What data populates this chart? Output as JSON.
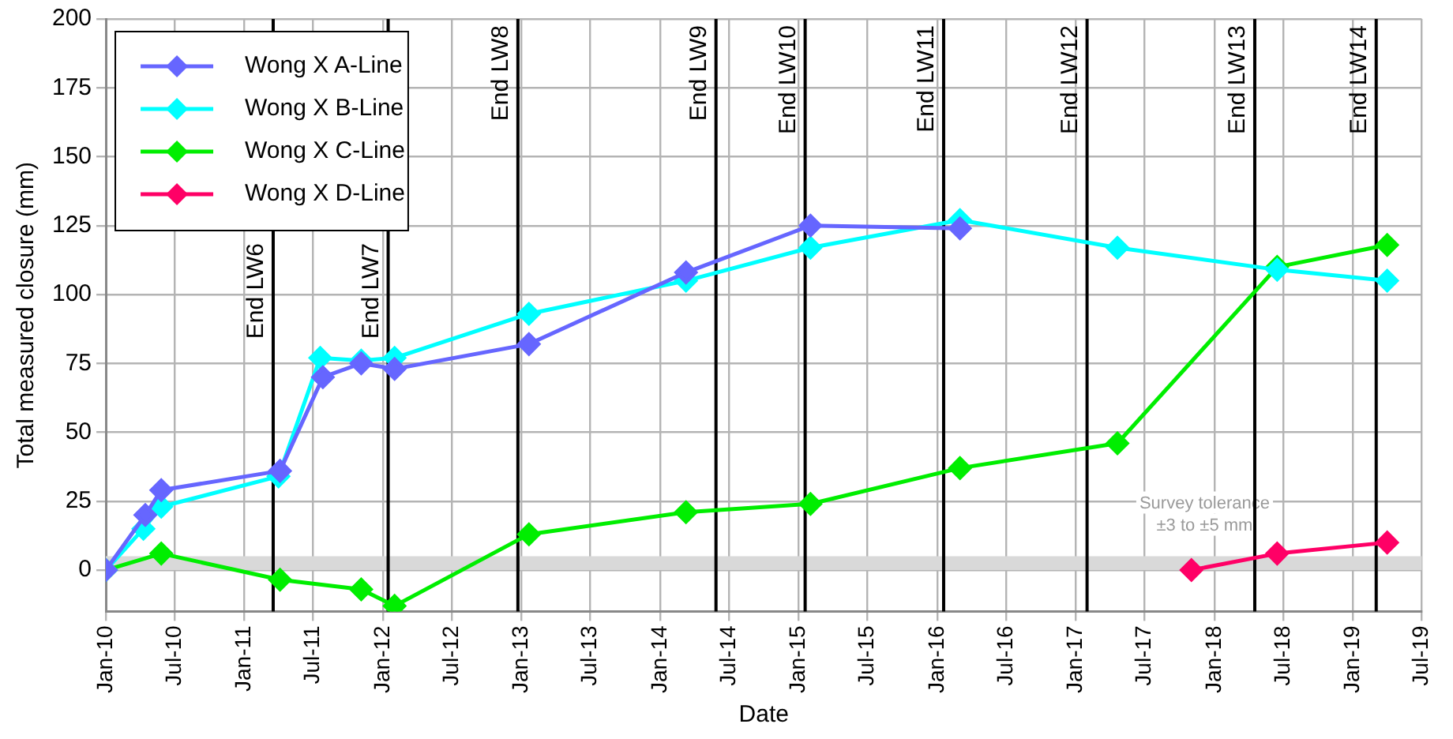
{
  "chart_data": {
    "type": "line",
    "xlabel": "Date",
    "ylabel": "Total measured closure (mm)",
    "xlim": [
      "2010-01",
      "2019-07"
    ],
    "xticks": [
      {
        "value": "2010-01",
        "label": "Jan-10"
      },
      {
        "value": "2010-07",
        "label": "Jul-10"
      },
      {
        "value": "2011-01",
        "label": "Jan-11"
      },
      {
        "value": "2011-07",
        "label": "Jul-11"
      },
      {
        "value": "2012-01",
        "label": "Jan-12"
      },
      {
        "value": "2012-07",
        "label": "Jul-12"
      },
      {
        "value": "2013-01",
        "label": "Jan-13"
      },
      {
        "value": "2013-07",
        "label": "Jul-13"
      },
      {
        "value": "2014-01",
        "label": "Jan-14"
      },
      {
        "value": "2014-07",
        "label": "Jul-14"
      },
      {
        "value": "2015-01",
        "label": "Jan-15"
      },
      {
        "value": "2015-07",
        "label": "Jul-15"
      },
      {
        "value": "2016-01",
        "label": "Jan-16"
      },
      {
        "value": "2016-07",
        "label": "Jul-16"
      },
      {
        "value": "2017-01",
        "label": "Jan-17"
      },
      {
        "value": "2017-07",
        "label": "Jul-17"
      },
      {
        "value": "2018-01",
        "label": "Jan-18"
      },
      {
        "value": "2018-07",
        "label": "Jul-18"
      },
      {
        "value": "2019-01",
        "label": "Jan-19"
      },
      {
        "value": "2019-07",
        "label": "Jul-19"
      }
    ],
    "ylim": [
      -15,
      200
    ],
    "yticks": [
      0,
      25,
      50,
      75,
      100,
      125,
      150,
      175,
      200
    ],
    "grid": true,
    "legend": "top left",
    "marker": "diamond",
    "line_style": "solid",
    "series": [
      {
        "name": "Wong X A-Line",
        "color": "#6666ff",
        "x": [
          "2010-01-01",
          "2010-04-15",
          "2010-05-27",
          "2011-04-05",
          "2011-07-27",
          "2011-11-05",
          "2012-02-01",
          "2013-01-20",
          "2014-03-10",
          "2015-02-01",
          "2016-03-01"
        ],
        "values": [
          0,
          20,
          29,
          36,
          70,
          75,
          73,
          82,
          108,
          125,
          124
        ]
      },
      {
        "name": "Wong X B-Line",
        "color": "#00ffff",
        "x": [
          "2010-01-01",
          "2010-04-10",
          "2010-05-27",
          "2011-04-01",
          "2011-07-20",
          "2011-11-05",
          "2012-02-01",
          "2013-01-20",
          "2014-03-10",
          "2015-02-01",
          "2016-03-01",
          "2017-04-20",
          "2018-06-15",
          "2019-04-01"
        ],
        "values": [
          0,
          15,
          23,
          34,
          77,
          76,
          77,
          93,
          105,
          117,
          127,
          117,
          109,
          105
        ]
      },
      {
        "name": "Wong X C-Line",
        "color": "#00ee00",
        "x": [
          "2010-01-01",
          "2010-05-27",
          "2011-04-05",
          "2011-11-05",
          "2012-02-01",
          "2013-01-20",
          "2014-03-10",
          "2015-02-01",
          "2016-03-01",
          "2017-04-20",
          "2018-06-15",
          "2019-04-01"
        ],
        "values": [
          0,
          6,
          -3.5,
          -7,
          -13,
          13,
          21,
          24,
          37,
          46,
          110,
          118
        ]
      },
      {
        "name": "Wong X D-Line",
        "color": "#ff0066",
        "x": [
          "2017-11-01",
          "2018-06-15",
          "2019-04-01"
        ],
        "values": [
          0,
          6,
          10
        ]
      }
    ],
    "ref_lines": [
      {
        "axis": "x",
        "value": "2011-03-18",
        "label": "End LW6",
        "color": "#000000"
      },
      {
        "axis": "x",
        "value": "2012-01-15",
        "label": "End LW7",
        "color": "#000000"
      },
      {
        "axis": "x",
        "value": "2012-12-22",
        "label": "End LW8",
        "color": "#000000"
      },
      {
        "axis": "x",
        "value": "2014-05-28",
        "label": "End LW9",
        "color": "#000000"
      },
      {
        "axis": "x",
        "value": "2015-01-18",
        "label": "End LW10",
        "color": "#000000"
      },
      {
        "axis": "x",
        "value": "2016-01-18",
        "label": "End LW11",
        "color": "#000000"
      },
      {
        "axis": "x",
        "value": "2017-01-30",
        "label": "End LW12",
        "color": "#000000"
      },
      {
        "axis": "x",
        "value": "2018-04-17",
        "label": "End LW13",
        "color": "#000000"
      },
      {
        "axis": "x",
        "value": "2019-03-03",
        "label": "End LW14",
        "color": "#000000"
      }
    ],
    "bands": [
      {
        "axis": "y",
        "from": 0,
        "to": 5,
        "label": "Survey tolerance\n±3 to ±5 mm",
        "color": "#d9d9d9"
      }
    ]
  }
}
